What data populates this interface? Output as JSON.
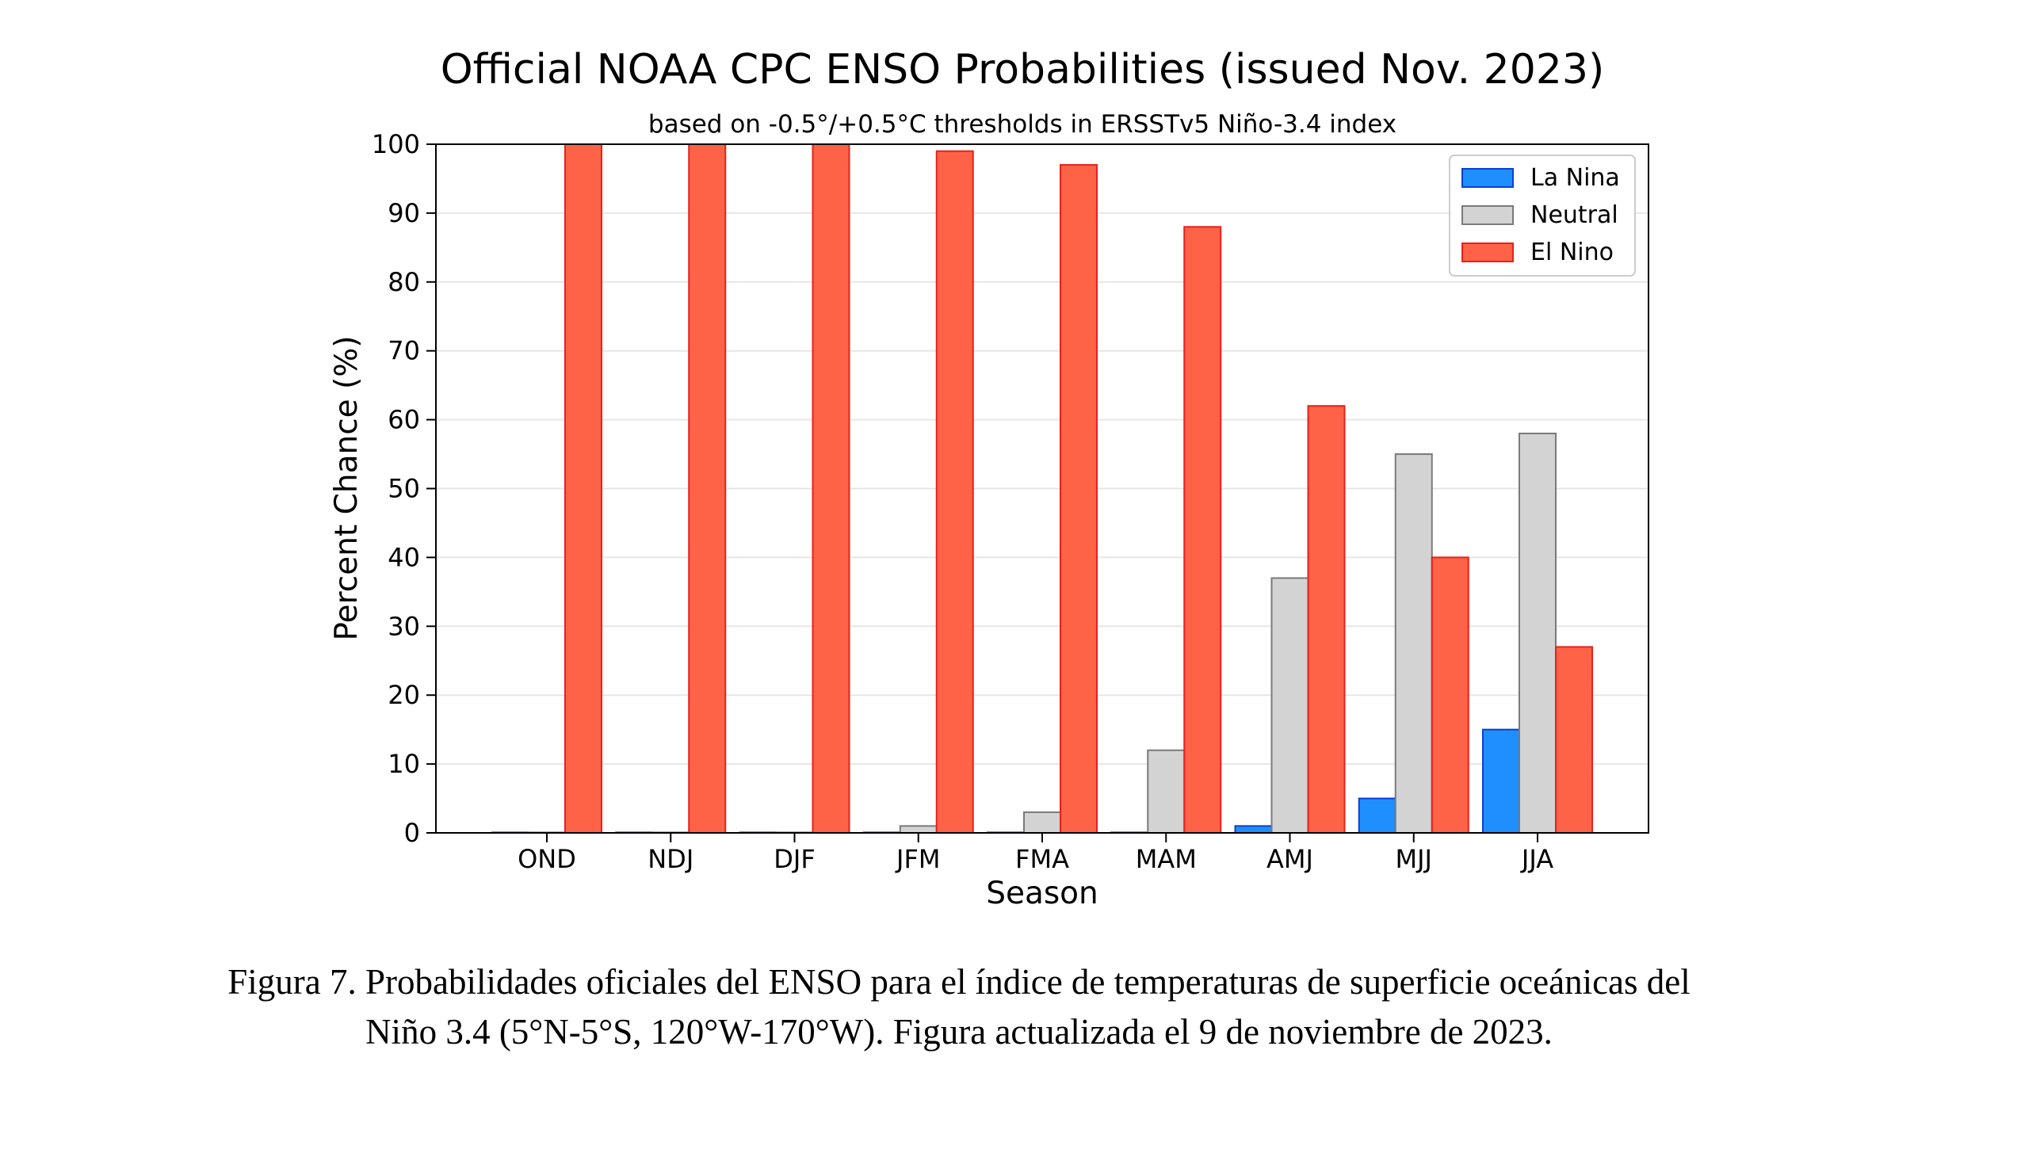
{
  "chart_data": {
    "type": "bar",
    "title": "Official NOAA CPC ENSO Probabilities (issued Nov. 2023)",
    "subtitle": "based on -0.5°/+0.5°C thresholds in ERSSTv5 Niño-3.4 index",
    "xlabel": "Season",
    "ylabel": "Percent Chance (%)",
    "ylim": [
      0,
      100
    ],
    "yticks": [
      0,
      10,
      20,
      30,
      40,
      50,
      60,
      70,
      80,
      90,
      100
    ],
    "grid": true,
    "legend_position": "top-right",
    "categories": [
      "OND",
      "NDJ",
      "DJF",
      "JFM",
      "FMA",
      "MAM",
      "AMJ",
      "MJJ",
      "JJA"
    ],
    "series": [
      {
        "name": "La Nina",
        "color": "#1f8fff",
        "edge": "#0a3fd6",
        "values": [
          0,
          0,
          0,
          0,
          0,
          0,
          1,
          5,
          15
        ]
      },
      {
        "name": "Neutral",
        "color": "#d3d3d3",
        "edge": "#7a7a7a",
        "values": [
          0,
          0,
          0,
          1,
          3,
          12,
          37,
          55,
          58
        ]
      },
      {
        "name": "El Nino",
        "color": "#ff6347",
        "edge": "#e8201a",
        "values": [
          100,
          100,
          100,
          99,
          97,
          88,
          62,
          40,
          27
        ]
      }
    ]
  },
  "caption": {
    "line1": "Figura 7. Probabilidades oficiales del ENSO para el índice de temperaturas de superficie oceánicas del",
    "line2": "Niño 3.4 (5°N-5°S, 120°W-170°W). Figura actualizada el 9 de noviembre de 2023."
  }
}
